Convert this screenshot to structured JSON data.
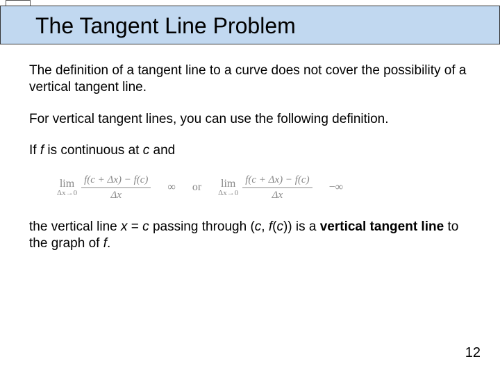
{
  "title": "The Tangent Line Problem",
  "para1": "The definition of a tangent line to a curve does not cover the possibility of a vertical tangent line.",
  "para2": "For vertical tangent lines, you can use the following definition.",
  "para3_prefix": "If ",
  "para3_f": "f",
  "para3_mid": " is continuous at ",
  "para3_c": "c",
  "para3_suffix": " and",
  "math": {
    "lim": "lim",
    "limsub": "Δx→0",
    "num": "f(c + Δx) − f(c)",
    "den": "Δx",
    "inf": "∞",
    "or": "or",
    "neginf": "−∞"
  },
  "para4_a": "the vertical line ",
  "para4_b": "x",
  "para4_c": " = ",
  "para4_d": "c",
  "para4_e": " passing through (",
  "para4_f": "c",
  "para4_g": ", ",
  "para4_h": "f",
  "para4_i": "(",
  "para4_j": "c",
  "para4_k": ")) is a ",
  "para4_l": "vertical tangent line",
  "para4_m": " to the graph of ",
  "para4_n": "f",
  "para4_o": ".",
  "pageNumber": "12",
  "colors": {
    "titleBar": "#c1d8f0",
    "mathGray": "#888888",
    "text": "#000000",
    "bg": "#ffffff"
  }
}
